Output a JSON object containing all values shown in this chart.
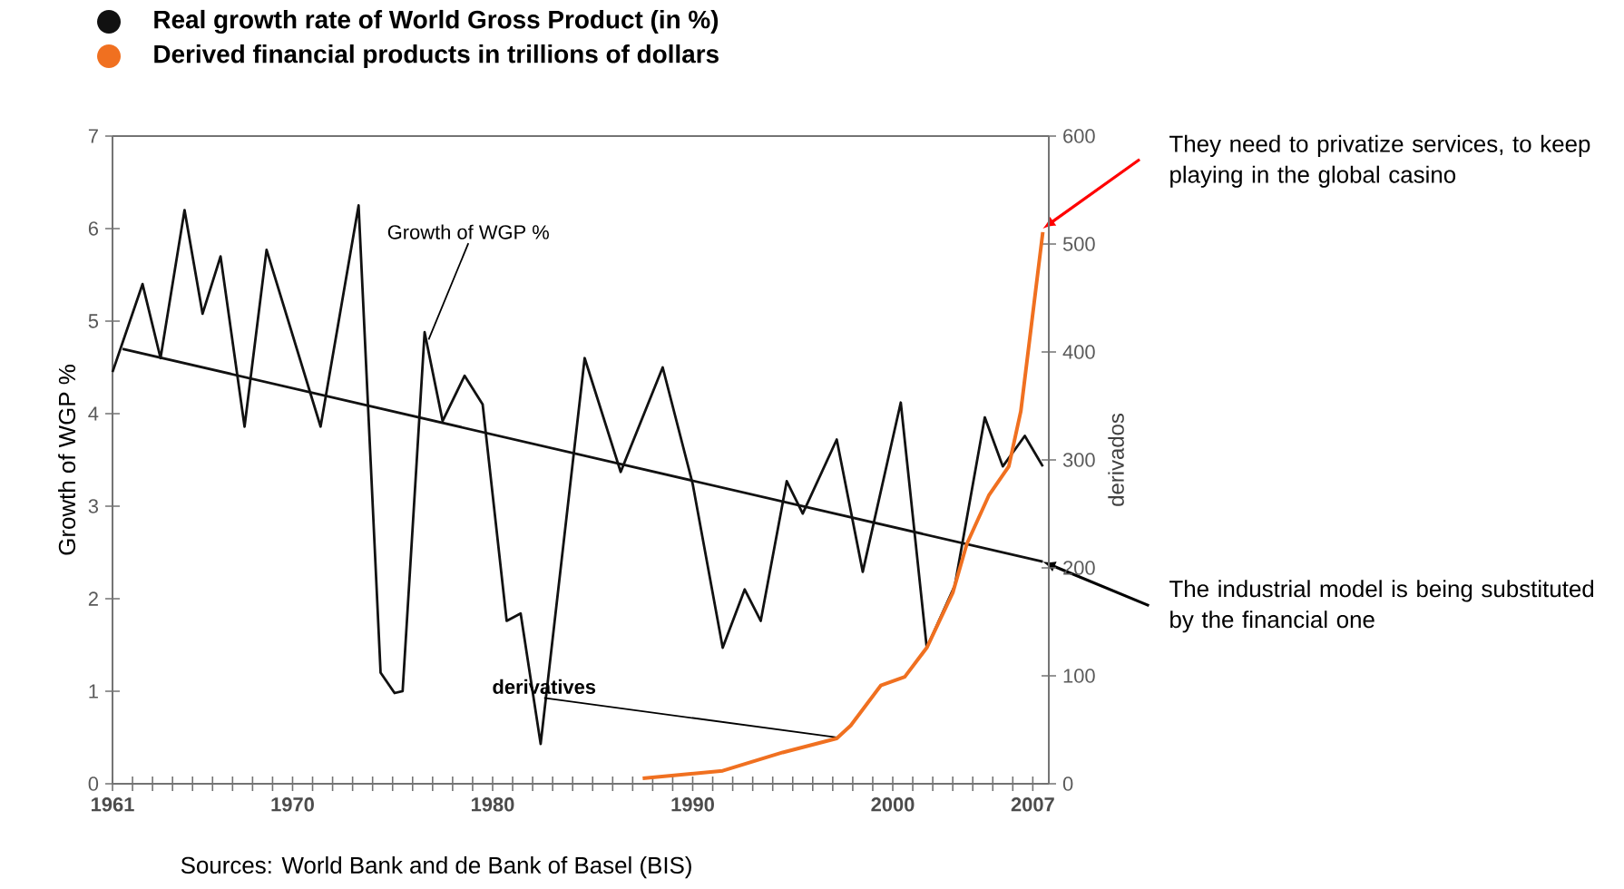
{
  "chart_data": {
    "type": "line",
    "xlabel": null,
    "ylabel": "Growth of WGP %",
    "y2label": "derivados",
    "xlim": [
      1961,
      2007.8
    ],
    "xticks": [
      1961,
      {
        "value": 1962,
        "label": null
      },
      {
        "value": 1963,
        "label": null
      },
      {
        "value": 1964,
        "label": null
      },
      {
        "value": 1965,
        "label": null
      },
      {
        "value": 1966,
        "label": null
      },
      {
        "value": 1967,
        "label": null
      },
      {
        "value": 1968,
        "label": null
      },
      {
        "value": 1969,
        "label": null
      },
      1970,
      {
        "value": 1971,
        "label": null
      },
      {
        "value": 1972,
        "label": null
      },
      {
        "value": 1973,
        "label": null
      },
      {
        "value": 1974,
        "label": null
      },
      {
        "value": 1975,
        "label": null
      },
      {
        "value": 1976,
        "label": null
      },
      {
        "value": 1977,
        "label": null
      },
      {
        "value": 1978,
        "label": null
      },
      {
        "value": 1979,
        "label": null
      },
      1980,
      {
        "value": 1981,
        "label": null
      },
      {
        "value": 1982,
        "label": null
      },
      {
        "value": 1983,
        "label": null
      },
      {
        "value": 1984,
        "label": null
      },
      {
        "value": 1985,
        "label": null
      },
      {
        "value": 1986,
        "label": null
      },
      {
        "value": 1987,
        "label": null
      },
      {
        "value": 1988,
        "label": null
      },
      {
        "value": 1989,
        "label": null
      },
      1990,
      {
        "value": 1991,
        "label": null
      },
      {
        "value": 1992,
        "label": null
      },
      {
        "value": 1993,
        "label": null
      },
      {
        "value": 1994,
        "label": null
      },
      {
        "value": 1995,
        "label": null
      },
      {
        "value": 1996,
        "label": null
      },
      {
        "value": 1997,
        "label": null
      },
      {
        "value": 1998,
        "label": null
      },
      {
        "value": 1999,
        "label": null
      },
      2000,
      {
        "value": 2001,
        "label": null
      },
      {
        "value": 2002,
        "label": null
      },
      {
        "value": 2003,
        "label": null
      },
      {
        "value": 2004,
        "label": null
      },
      {
        "value": 2005,
        "label": null
      },
      {
        "value": 2006,
        "label": null
      },
      2007
    ],
    "ylim": [
      0,
      7
    ],
    "yticks": [
      0,
      1,
      2,
      3,
      4,
      5,
      6,
      7
    ],
    "y2lim": [
      0,
      600
    ],
    "y2ticks": [
      0,
      100,
      200,
      300,
      400,
      500,
      600
    ],
    "legend": "top left",
    "marker": "none",
    "line_style": "solid",
    "grid": false,
    "series": [
      {
        "name": "Real growth rate of  World Gross Product (in %)",
        "color": "#111111",
        "x": [
          1961,
          1962.5,
          1963.4,
          1964.6,
          1965.5,
          1966.4,
          1967.6,
          1968.7,
          1971.4,
          1973.3,
          1974.4,
          1975.1,
          1975.5,
          1976.6,
          1977.5,
          1978.6,
          1979.5,
          1980.7,
          1981.4,
          1982.4,
          1984.6,
          1986.4,
          1988.5,
          1990.0,
          1991.5,
          1992.6,
          1993.4,
          1994.7,
          1995.5,
          1997.2,
          1998.5,
          2000.4,
          2001.7,
          2003.1,
          2004.6,
          2005.5,
          2006.6,
          2007.5
        ],
        "values": [
          4.45,
          5.4,
          4.6,
          6.2,
          5.08,
          5.7,
          3.86,
          5.77,
          3.86,
          6.25,
          1.2,
          0.98,
          1.0,
          4.88,
          3.92,
          4.41,
          4.1,
          1.76,
          1.84,
          0.43,
          4.6,
          3.37,
          4.5,
          3.24,
          1.47,
          2.1,
          1.76,
          3.27,
          2.92,
          3.72,
          2.29,
          4.12,
          1.47,
          2.14,
          3.96,
          3.43,
          3.76,
          3.43
        ]
      },
      {
        "color": "#111111",
        "x": [
          1961.5,
          2007.5
        ],
        "values": [
          4.7,
          2.4
        ]
      },
      {
        "name": "Derived financial products in trillions of dollars",
        "color": "#f07020",
        "axis": "y2",
        "x": [
          1987.5,
          1991.5,
          1994.5,
          1997.2,
          1997.9,
          1999.4,
          2000.6,
          2001.7,
          2003.0,
          2003.7,
          2004.8,
          2005.8,
          2006.4,
          2007.5
        ],
        "values": [
          5,
          12,
          29,
          42,
          54,
          91,
          99,
          126,
          177,
          222,
          267,
          294,
          345,
          511
        ]
      }
    ],
    "annotations": [
      {
        "text": "Growth of WGP %",
        "x": 1976.8,
        "y": 4.8
      },
      {
        "text": "derivatives",
        "x": 1997.2,
        "y": 0.5
      },
      {
        "text": "They need to privatize services, to keep playing in the global casino",
        "x": 2007.5,
        "y": 6.0
      },
      {
        "text": "The industrial model is being substituted by the financial one",
        "x": 2007.5,
        "y": 2.4
      },
      "Sources: World Bank and de Bank of Basel (BIS)"
    ]
  }
}
